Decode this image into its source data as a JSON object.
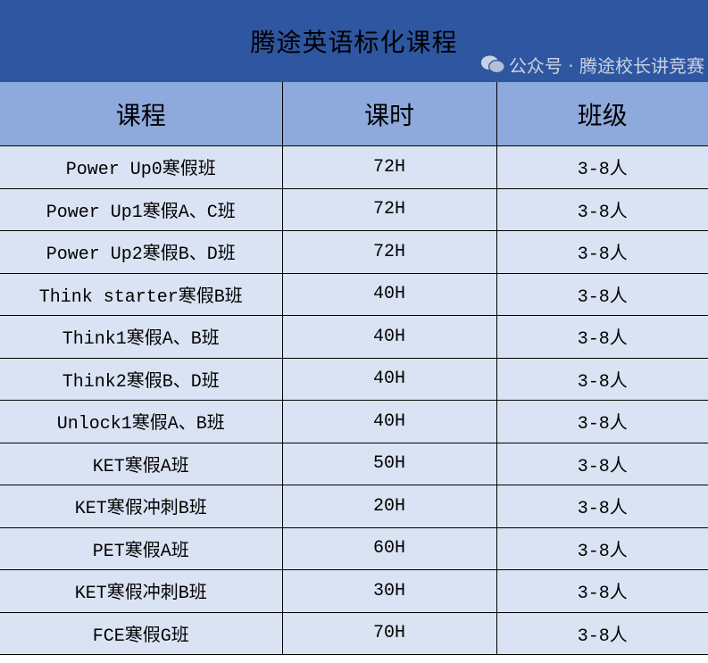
{
  "title": "腾途英语标化课程",
  "columns": [
    "课程",
    "课时",
    "班级"
  ],
  "rows": [
    [
      "Power Up0寒假班",
      "72H",
      "3-8人"
    ],
    [
      "Power Up1寒假A、C班",
      "72H",
      "3-8人"
    ],
    [
      "Power Up2寒假B、D班",
      "72H",
      "3-8人"
    ],
    [
      "Think starter寒假B班",
      "40H",
      "3-8人"
    ],
    [
      "Think1寒假A、B班",
      "40H",
      "3-8人"
    ],
    [
      "Think2寒假B、D班",
      "40H",
      "3-8人"
    ],
    [
      "Unlock1寒假A、B班",
      "40H",
      "3-8人"
    ],
    [
      "KET寒假A班",
      "50H",
      "3-8人"
    ],
    [
      "KET寒假冲刺B班",
      "20H",
      "3-8人"
    ],
    [
      "PET寒假A班",
      "60H",
      "3-8人"
    ],
    [
      "KET寒假冲刺B班",
      "30H",
      "3-8人"
    ],
    [
      "FCE寒假G班",
      "70H",
      "3-8人"
    ]
  ],
  "watermark": {
    "icon": "wechat-icon",
    "text": "公众号 · 腾途校长讲竞赛"
  },
  "colors": {
    "title_bg": "#2f56a0",
    "header_bg": "#8eaadc",
    "row_bg": "#dae3f3"
  }
}
